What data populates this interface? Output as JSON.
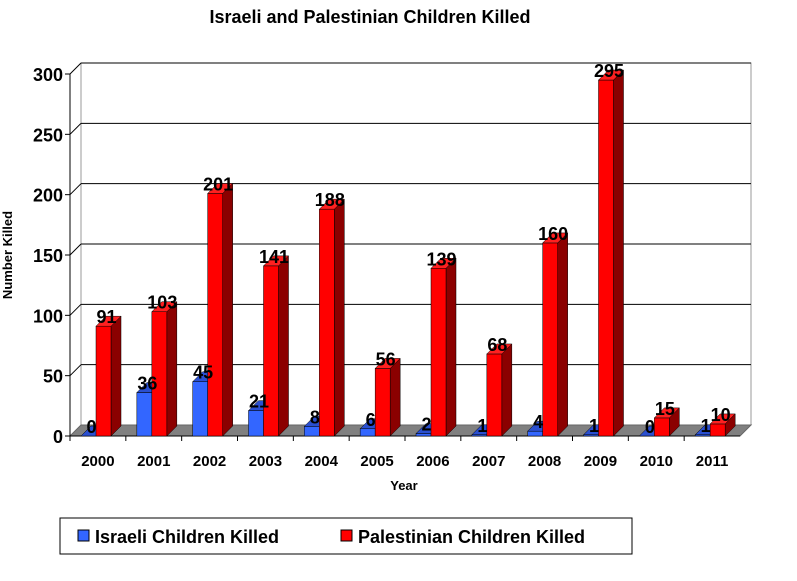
{
  "chart_data": {
    "type": "bar",
    "title": "Israeli and Palestinian Children Killed",
    "xlabel": "Year",
    "ylabel": "Number Killed",
    "ylim": [
      0,
      300
    ],
    "yticks": [
      0,
      50,
      100,
      150,
      200,
      250,
      300
    ],
    "grid": true,
    "legend_position": "bottom",
    "categories": [
      "2000",
      "2001",
      "2002",
      "2003",
      "2004",
      "2005",
      "2006",
      "2007",
      "2008",
      "2009",
      "2010",
      "2011"
    ],
    "series": [
      {
        "name": "Israeli Children Killed",
        "color": "#3366ff",
        "side": "#1f3fa0",
        "values": [
          0,
          36,
          45,
          21,
          8,
          6,
          2,
          1,
          4,
          1,
          0,
          1
        ]
      },
      {
        "name": "Palestinian Children Killed",
        "color": "#ff0000",
        "side": "#8b0000",
        "values": [
          91,
          103,
          201,
          141,
          188,
          56,
          139,
          68,
          160,
          295,
          15,
          10
        ]
      }
    ]
  }
}
